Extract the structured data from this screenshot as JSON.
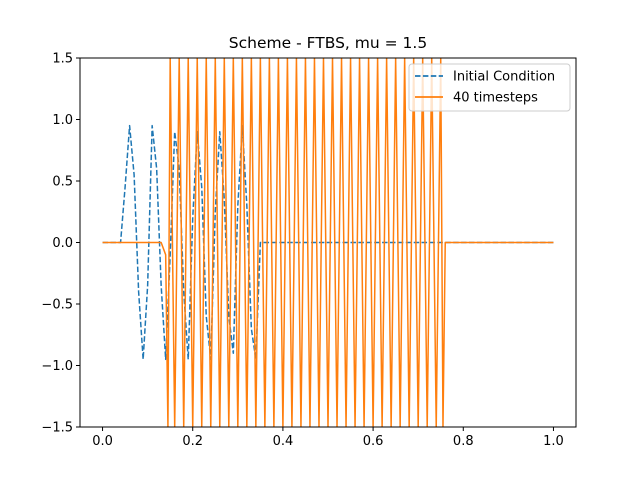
{
  "chart_data": {
    "type": "line",
    "title": "Scheme - FTBS, mu = 1.5",
    "xlabel": "",
    "ylabel": "",
    "xlim": [
      -0.05,
      1.05
    ],
    "ylim": [
      -1.5,
      1.5
    ],
    "x_ticks": [
      0.0,
      0.2,
      0.4,
      0.6,
      0.8,
      1.0
    ],
    "x_tick_labels": [
      "0.0",
      "0.2",
      "0.4",
      "0.6",
      "0.8",
      "1.0"
    ],
    "y_ticks": [
      -1.5,
      -1.0,
      -0.5,
      0.0,
      0.5,
      1.0,
      1.5
    ],
    "y_tick_labels": [
      "−1.5",
      "−1.0",
      "−0.5",
      "0.0",
      "0.5",
      "1.0",
      "1.5"
    ],
    "grid": false,
    "legend": "top-right",
    "series": [
      {
        "name": "Initial Condition",
        "style": "dashed",
        "color": "#1f77b4",
        "x": [
          0.0,
          0.04,
          0.05,
          0.06,
          0.07,
          0.08,
          0.09,
          0.1,
          0.11,
          0.12,
          0.13,
          0.14,
          0.15,
          0.16,
          0.17,
          0.18,
          0.19,
          0.2,
          0.21,
          0.22,
          0.23,
          0.24,
          0.25,
          0.26,
          0.27,
          0.28,
          0.29,
          0.3,
          0.31,
          0.32,
          0.33,
          0.34,
          0.35,
          0.36,
          1.0
        ],
        "y": [
          0.0,
          0.0,
          0.45,
          0.95,
          0.55,
          -0.4,
          -0.95,
          -0.35,
          0.95,
          0.6,
          -0.35,
          -0.95,
          -0.1,
          0.9,
          0.6,
          -0.4,
          -0.95,
          0.2,
          0.9,
          0.45,
          -0.6,
          -0.95,
          0.25,
          0.9,
          0.35,
          -0.6,
          -0.9,
          0.3,
          0.95,
          0.3,
          -0.7,
          -0.95,
          0.0,
          0.0,
          0.0
        ]
      },
      {
        "name": "40 timesteps",
        "style": "solid",
        "color": "#ff7f0e",
        "x": [
          0.0,
          0.12,
          0.13,
          0.14,
          0.145,
          0.15,
          0.16,
          0.17,
          0.18,
          0.19,
          0.2,
          0.21,
          0.22,
          0.23,
          0.24,
          0.25,
          0.26,
          0.27,
          0.28,
          0.29,
          0.3,
          0.31,
          0.32,
          0.33,
          0.34,
          0.35,
          0.36,
          0.37,
          0.38,
          0.39,
          0.4,
          0.41,
          0.42,
          0.43,
          0.44,
          0.45,
          0.46,
          0.47,
          0.48,
          0.49,
          0.5,
          0.51,
          0.52,
          0.53,
          0.54,
          0.55,
          0.56,
          0.57,
          0.58,
          0.59,
          0.6,
          0.61,
          0.62,
          0.63,
          0.64,
          0.65,
          0.66,
          0.67,
          0.68,
          0.69,
          0.7,
          0.71,
          0.72,
          0.73,
          0.74,
          0.75,
          0.755,
          0.76,
          1.0
        ],
        "y": [
          0.0,
          0.0,
          0.0,
          -0.1,
          -1.5,
          1.5,
          -1.5,
          1.5,
          -1.5,
          1.5,
          -1.5,
          1.5,
          -1.5,
          1.5,
          -1.5,
          1.5,
          -1.5,
          1.5,
          -1.5,
          1.5,
          -1.5,
          1.5,
          -1.5,
          1.5,
          -1.5,
          1.5,
          -1.5,
          1.5,
          -1.5,
          1.5,
          -1.5,
          1.5,
          -1.5,
          1.5,
          -1.5,
          1.5,
          -1.5,
          1.5,
          -1.5,
          1.5,
          -1.5,
          1.5,
          -1.5,
          1.5,
          -1.5,
          1.5,
          -1.5,
          1.5,
          -1.5,
          1.5,
          -1.5,
          1.5,
          -1.5,
          1.5,
          -1.5,
          1.5,
          -1.5,
          1.5,
          -1.5,
          1.5,
          -1.5,
          1.5,
          -1.5,
          1.5,
          -1.5,
          1.5,
          -1.5,
          0.0,
          0.0
        ]
      }
    ]
  }
}
